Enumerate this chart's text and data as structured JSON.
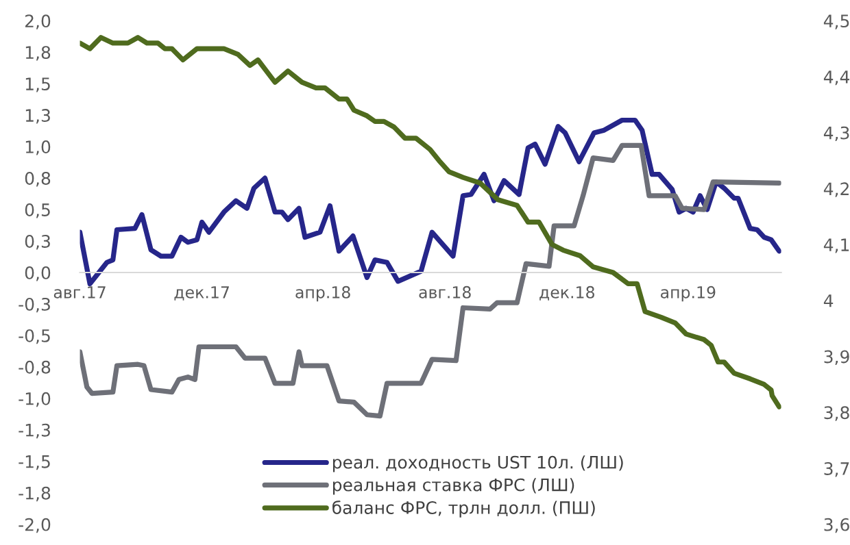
{
  "chart_data": {
    "type": "line",
    "xlim": [
      "2017-08-01",
      "2019-07-03"
    ],
    "xticks": [
      {
        "value": "2017-08-01",
        "label": "авг.17"
      },
      {
        "value": "2017-12-01",
        "label": "дек.17"
      },
      {
        "value": "2018-04-01",
        "label": "апр.18"
      },
      {
        "value": "2018-08-01",
        "label": "авг.18"
      },
      {
        "value": "2018-12-01",
        "label": "дек.18"
      },
      {
        "value": "2019-04-01",
        "label": "апр.19"
      }
    ],
    "ylim": [
      -2.0,
      2.0
    ],
    "yticks": [
      {
        "value": 2.0,
        "label": "2,0"
      },
      {
        "value": 1.75,
        "label": "1,8"
      },
      {
        "value": 1.5,
        "label": "1,5"
      },
      {
        "value": 1.25,
        "label": "1,3"
      },
      {
        "value": 1.0,
        "label": "1,0"
      },
      {
        "value": 0.75,
        "label": "0,8"
      },
      {
        "value": 0.5,
        "label": "0,5"
      },
      {
        "value": 0.25,
        "label": "0,3"
      },
      {
        "value": 0.0,
        "label": "0,0"
      },
      {
        "value": -0.25,
        "label": "-0,3"
      },
      {
        "value": -0.5,
        "label": "-0,5"
      },
      {
        "value": -0.75,
        "label": "-0,8"
      },
      {
        "value": -1.0,
        "label": "-1,0"
      },
      {
        "value": -1.25,
        "label": "-1,3"
      },
      {
        "value": -1.5,
        "label": "-1,5"
      },
      {
        "value": -1.75,
        "label": "-1,8"
      },
      {
        "value": -2.0,
        "label": "-2,0"
      }
    ],
    "y2lim": [
      3.6,
      4.5
    ],
    "y2ticks": [
      {
        "value": 3.6,
        "label": "3,6"
      },
      {
        "value": 3.7,
        "label": "3,7"
      },
      {
        "value": 3.8,
        "label": "3,8"
      },
      {
        "value": 3.9,
        "label": "3,9"
      },
      {
        "value": 4.0,
        "label": "4"
      },
      {
        "value": 4.1,
        "label": "4,1"
      },
      {
        "value": 4.2,
        "label": "4,2"
      },
      {
        "value": 4.3,
        "label": "4,3"
      },
      {
        "value": 4.4,
        "label": "4,4"
      },
      {
        "value": 4.5,
        "label": "4,5"
      }
    ],
    "grid": false,
    "legend": "bottom",
    "marker": "none",
    "line_style": "solid",
    "series": [
      {
        "name": "реал. доходность UST 10л. (ЛШ)",
        "color": "#26268a",
        "x": [
          "2017-08-01",
          "2017-08-11",
          "2017-08-28",
          "2017-09-03",
          "2017-09-07",
          "2017-09-25",
          "2017-10-02",
          "2017-10-11",
          "2017-10-21",
          "2017-11-01",
          "2017-11-10",
          "2017-11-17",
          "2017-11-26",
          "2017-12-01",
          "2017-12-08",
          "2017-12-23",
          "2018-01-04",
          "2018-01-15",
          "2018-01-22",
          "2018-02-02",
          "2018-02-12",
          "2018-02-19",
          "2018-02-25",
          "2018-03-08",
          "2018-03-14",
          "2018-03-29",
          "2018-04-08",
          "2018-04-17",
          "2018-05-01",
          "2018-05-15",
          "2018-05-23",
          "2018-06-04",
          "2018-06-15",
          "2018-07-08",
          "2018-07-19",
          "2018-08-09",
          "2018-08-19",
          "2018-08-27",
          "2018-09-09",
          "2018-09-19",
          "2018-09-29",
          "2018-10-14",
          "2018-10-23",
          "2018-10-30",
          "2018-11-09",
          "2018-11-22",
          "2018-11-29",
          "2018-12-13",
          "2018-12-28",
          "2019-01-07",
          "2019-01-25",
          "2019-02-07",
          "2019-02-14",
          "2019-02-24",
          "2019-03-03",
          "2019-03-16",
          "2019-03-23",
          "2019-03-30",
          "2019-04-06",
          "2019-04-13",
          "2019-04-20",
          "2019-04-29",
          "2019-05-07",
          "2019-05-17",
          "2019-05-21",
          "2019-06-02",
          "2019-06-09",
          "2019-06-16",
          "2019-06-23",
          "2019-07-01"
        ],
        "values": [
          0.32,
          -0.09,
          0.08,
          0.1,
          0.34,
          0.35,
          0.46,
          0.18,
          0.13,
          0.13,
          0.28,
          0.24,
          0.26,
          0.4,
          0.32,
          0.48,
          0.57,
          0.51,
          0.67,
          0.75,
          0.48,
          0.48,
          0.42,
          0.51,
          0.28,
          0.32,
          0.53,
          0.17,
          0.29,
          -0.04,
          0.1,
          0.08,
          -0.07,
          0.01,
          0.32,
          0.13,
          0.61,
          0.62,
          0.78,
          0.57,
          0.73,
          0.62,
          0.99,
          1.02,
          0.86,
          1.16,
          1.11,
          0.88,
          1.11,
          1.13,
          1.21,
          1.21,
          1.13,
          0.78,
          0.78,
          0.66,
          0.48,
          0.51,
          0.48,
          0.61,
          0.5,
          0.72,
          0.67,
          0.59,
          0.59,
          0.35,
          0.34,
          0.28,
          0.26,
          0.17
        ]
      },
      {
        "name": "реальная ставка ФРС (ЛШ)",
        "color": "#6e7078",
        "x": [
          "2017-08-01",
          "2017-08-08",
          "2017-08-13",
          "2017-09-03",
          "2017-09-07",
          "2017-09-28",
          "2017-10-04",
          "2017-10-11",
          "2017-11-01",
          "2017-11-08",
          "2017-11-17",
          "2017-11-24",
          "2017-11-28",
          "2018-01-04",
          "2018-01-13",
          "2018-02-02",
          "2018-02-12",
          "2018-03-02",
          "2018-03-08",
          "2018-03-11",
          "2018-04-05",
          "2018-04-17",
          "2018-05-02",
          "2018-05-15",
          "2018-05-28",
          "2018-06-04",
          "2018-07-08",
          "2018-07-19",
          "2018-08-12",
          "2018-08-19",
          "2018-09-15",
          "2018-09-22",
          "2018-10-12",
          "2018-10-21",
          "2018-11-13",
          "2018-11-18",
          "2018-12-08",
          "2018-12-17",
          "2018-12-27",
          "2019-01-16",
          "2019-01-25",
          "2019-02-13",
          "2019-02-21",
          "2019-03-19",
          "2019-03-26",
          "2019-04-17",
          "2019-04-26",
          "2019-07-01"
        ],
        "values": [
          -0.63,
          -0.91,
          -0.96,
          -0.95,
          -0.74,
          -0.73,
          -0.74,
          -0.93,
          -0.95,
          -0.85,
          -0.83,
          -0.85,
          -0.59,
          -0.59,
          -0.68,
          -0.68,
          -0.88,
          -0.88,
          -0.63,
          -0.74,
          -0.74,
          -1.02,
          -1.03,
          -1.13,
          -1.14,
          -0.88,
          -0.88,
          -0.69,
          -0.7,
          -0.28,
          -0.29,
          -0.24,
          -0.24,
          0.07,
          0.05,
          0.37,
          0.37,
          0.61,
          0.91,
          0.89,
          1.01,
          1.01,
          0.61,
          0.61,
          0.51,
          0.5,
          0.72,
          0.71
        ]
      },
      {
        "name": "баланс ФРС, трлн долл. (ПШ)",
        "color": "#4f6b1e",
        "axis": "y2",
        "x": [
          "2017-08-01",
          "2017-08-11",
          "2017-08-22",
          "2017-09-03",
          "2017-09-18",
          "2017-09-28",
          "2017-10-07",
          "2017-10-18",
          "2017-10-25",
          "2017-11-01",
          "2017-11-12",
          "2017-11-26",
          "2017-12-09",
          "2017-12-23",
          "2018-01-06",
          "2018-01-18",
          "2018-01-26",
          "2018-02-12",
          "2018-02-25",
          "2018-03-11",
          "2018-03-25",
          "2018-04-03",
          "2018-04-17",
          "2018-04-25",
          "2018-05-02",
          "2018-05-15",
          "2018-05-23",
          "2018-06-01",
          "2018-06-11",
          "2018-06-22",
          "2018-07-03",
          "2018-07-17",
          "2018-07-26",
          "2018-08-05",
          "2018-08-19",
          "2018-09-05",
          "2018-09-23",
          "2018-10-12",
          "2018-10-23",
          "2018-11-03",
          "2018-11-16",
          "2018-11-27",
          "2018-12-14",
          "2018-12-27",
          "2019-01-16",
          "2019-01-31",
          "2019-02-09",
          "2019-02-17",
          "2019-03-05",
          "2019-03-19",
          "2019-03-30",
          "2019-04-17",
          "2019-04-24",
          "2019-05-01",
          "2019-05-07",
          "2019-05-17",
          "2019-06-02",
          "2019-06-16",
          "2019-06-23",
          "2019-06-24",
          "2019-07-01"
        ],
        "values": [
          4.46,
          4.45,
          4.47,
          4.46,
          4.46,
          4.47,
          4.46,
          4.46,
          4.45,
          4.45,
          4.43,
          4.45,
          4.45,
          4.45,
          4.44,
          4.42,
          4.43,
          4.39,
          4.41,
          4.39,
          4.38,
          4.38,
          4.36,
          4.36,
          4.34,
          4.33,
          4.32,
          4.32,
          4.31,
          4.29,
          4.29,
          4.27,
          4.25,
          4.23,
          4.22,
          4.21,
          4.18,
          4.17,
          4.14,
          4.14,
          4.1,
          4.09,
          4.08,
          4.06,
          4.05,
          4.03,
          4.03,
          3.98,
          3.97,
          3.96,
          3.94,
          3.93,
          3.92,
          3.89,
          3.89,
          3.87,
          3.86,
          3.85,
          3.84,
          3.83,
          3.81
        ]
      }
    ]
  }
}
